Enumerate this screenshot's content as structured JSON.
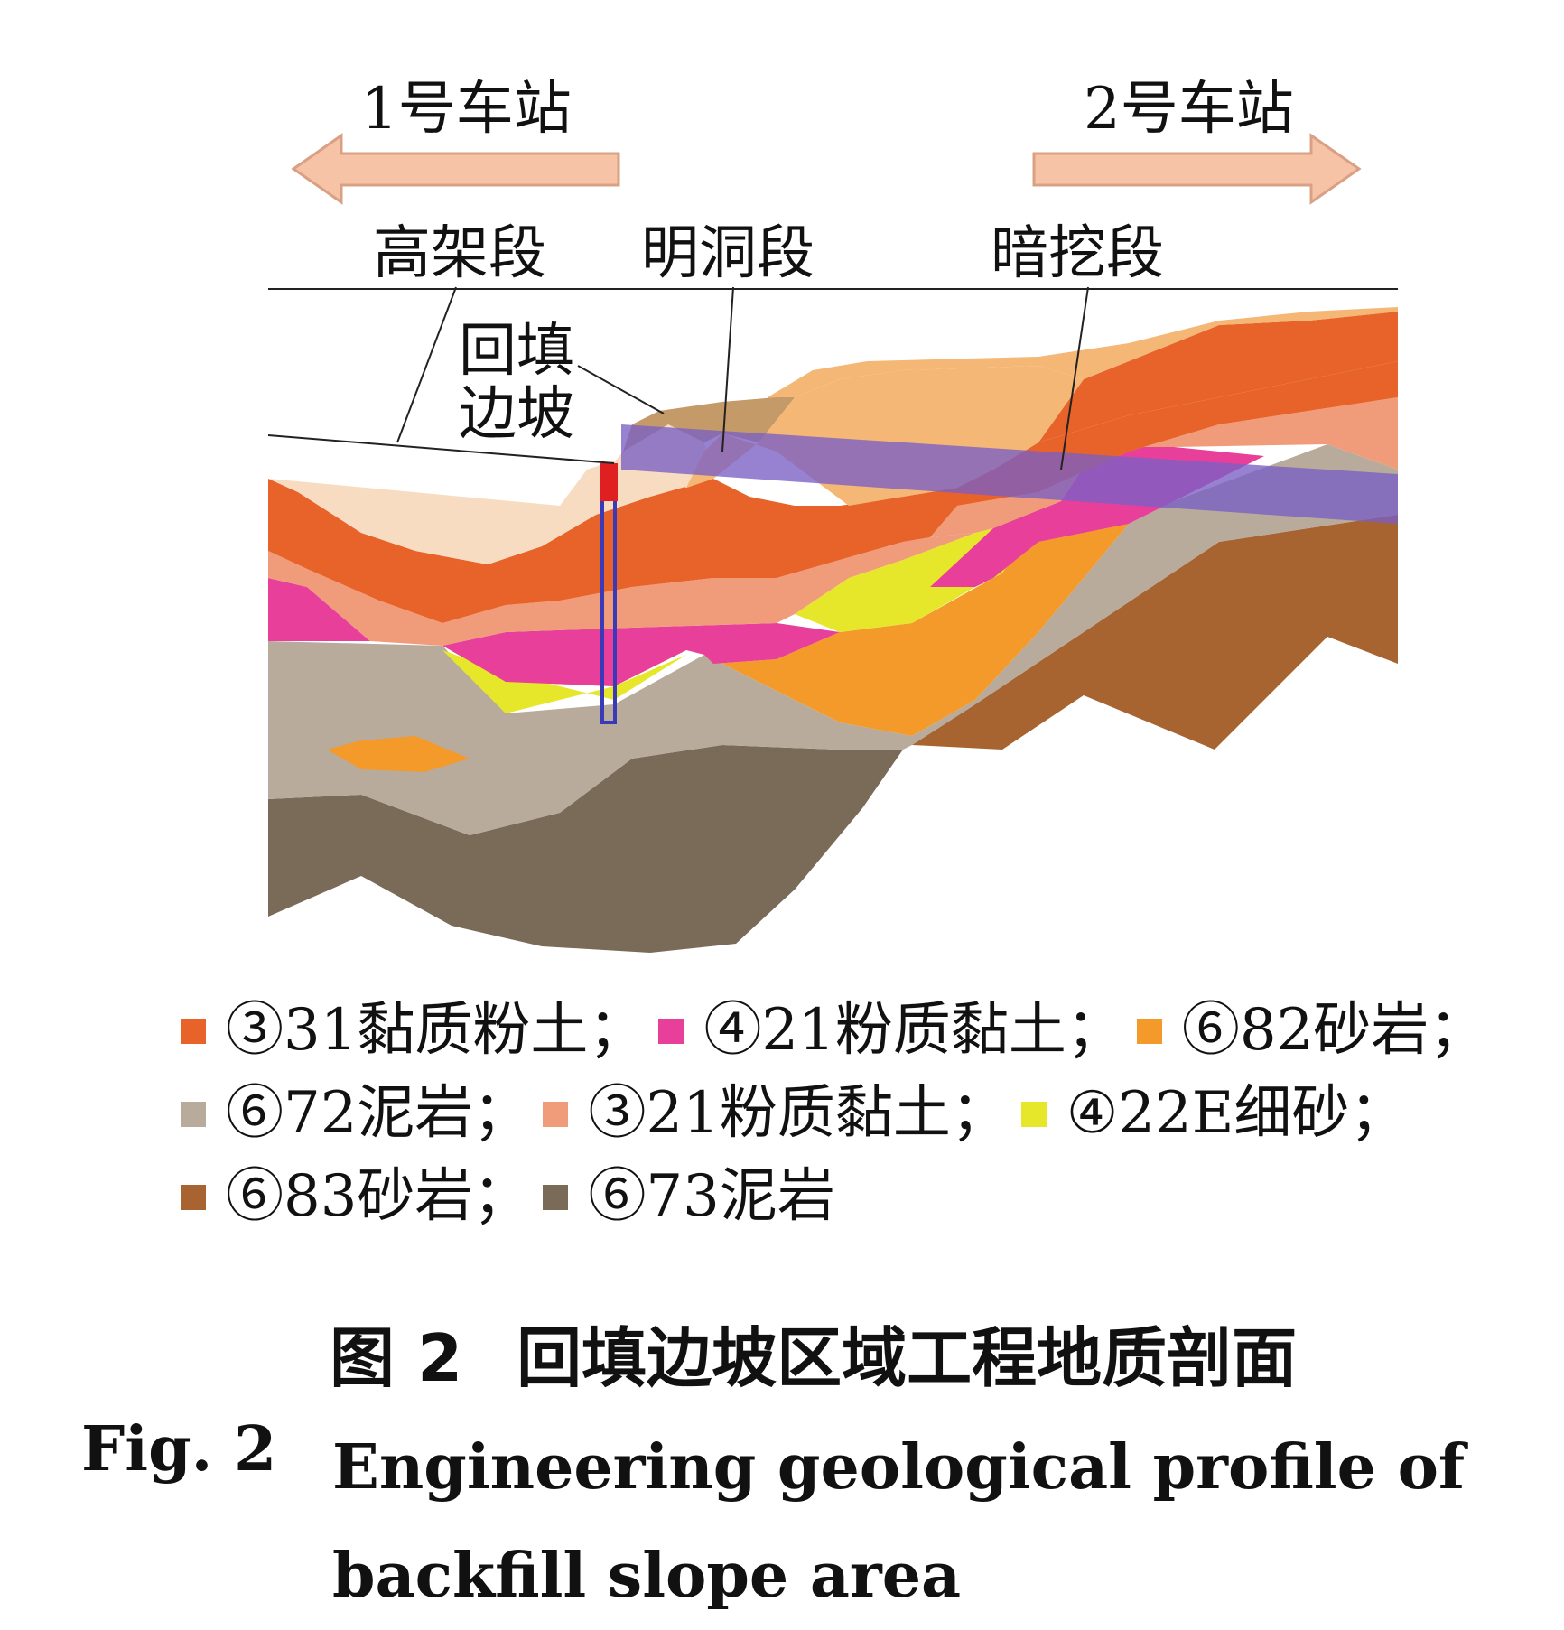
{
  "stations": {
    "left": "1号车站",
    "right": "2号车站",
    "arrow_color": "#f6c3a6",
    "arrow_stroke": "#d9a083"
  },
  "segments": {
    "elevated": "高架段",
    "open_cut": "明洞段",
    "mined": "暗挖段"
  },
  "backfill_label": {
    "line1": "回填",
    "line2": "边坡"
  },
  "legend": [
    {
      "name": "③31黏质粉土",
      "sep": "；",
      "color": "#e8632a"
    },
    {
      "name": "④21粉质黏土",
      "sep": "；",
      "color": "#e8409a"
    },
    {
      "name": "⑥82砂岩",
      "sep": "；",
      "color": "#f39a2b"
    },
    {
      "name": "⑥72泥岩",
      "sep": "；",
      "color": "#b8ab9c"
    },
    {
      "name": "③21粉质黏土",
      "sep": "；",
      "color": "#f09c7b"
    },
    {
      "name": "④22E细砂",
      "sep": "；",
      "color": "#e6e62a"
    },
    {
      "name": "⑥83砂岩",
      "sep": "；",
      "color": "#a86430"
    },
    {
      "name": "⑥73泥岩",
      "sep": "",
      "color": "#7a6a58"
    }
  ],
  "caption": {
    "cn_label": "图 2",
    "cn_title": "回填边坡区域工程地质剖面",
    "en_label": "Fig. 2",
    "en_title": "Engineering geological profile of backfill slope area"
  },
  "colors": {
    "fill_tan": "#f7dcc2",
    "fill_light_orange": "#f5b775",
    "fill_brown_top": "#c49a68",
    "tunnel": "#7a5fc4",
    "pile": "#3a3ab8",
    "pile_top": "#e02020"
  }
}
